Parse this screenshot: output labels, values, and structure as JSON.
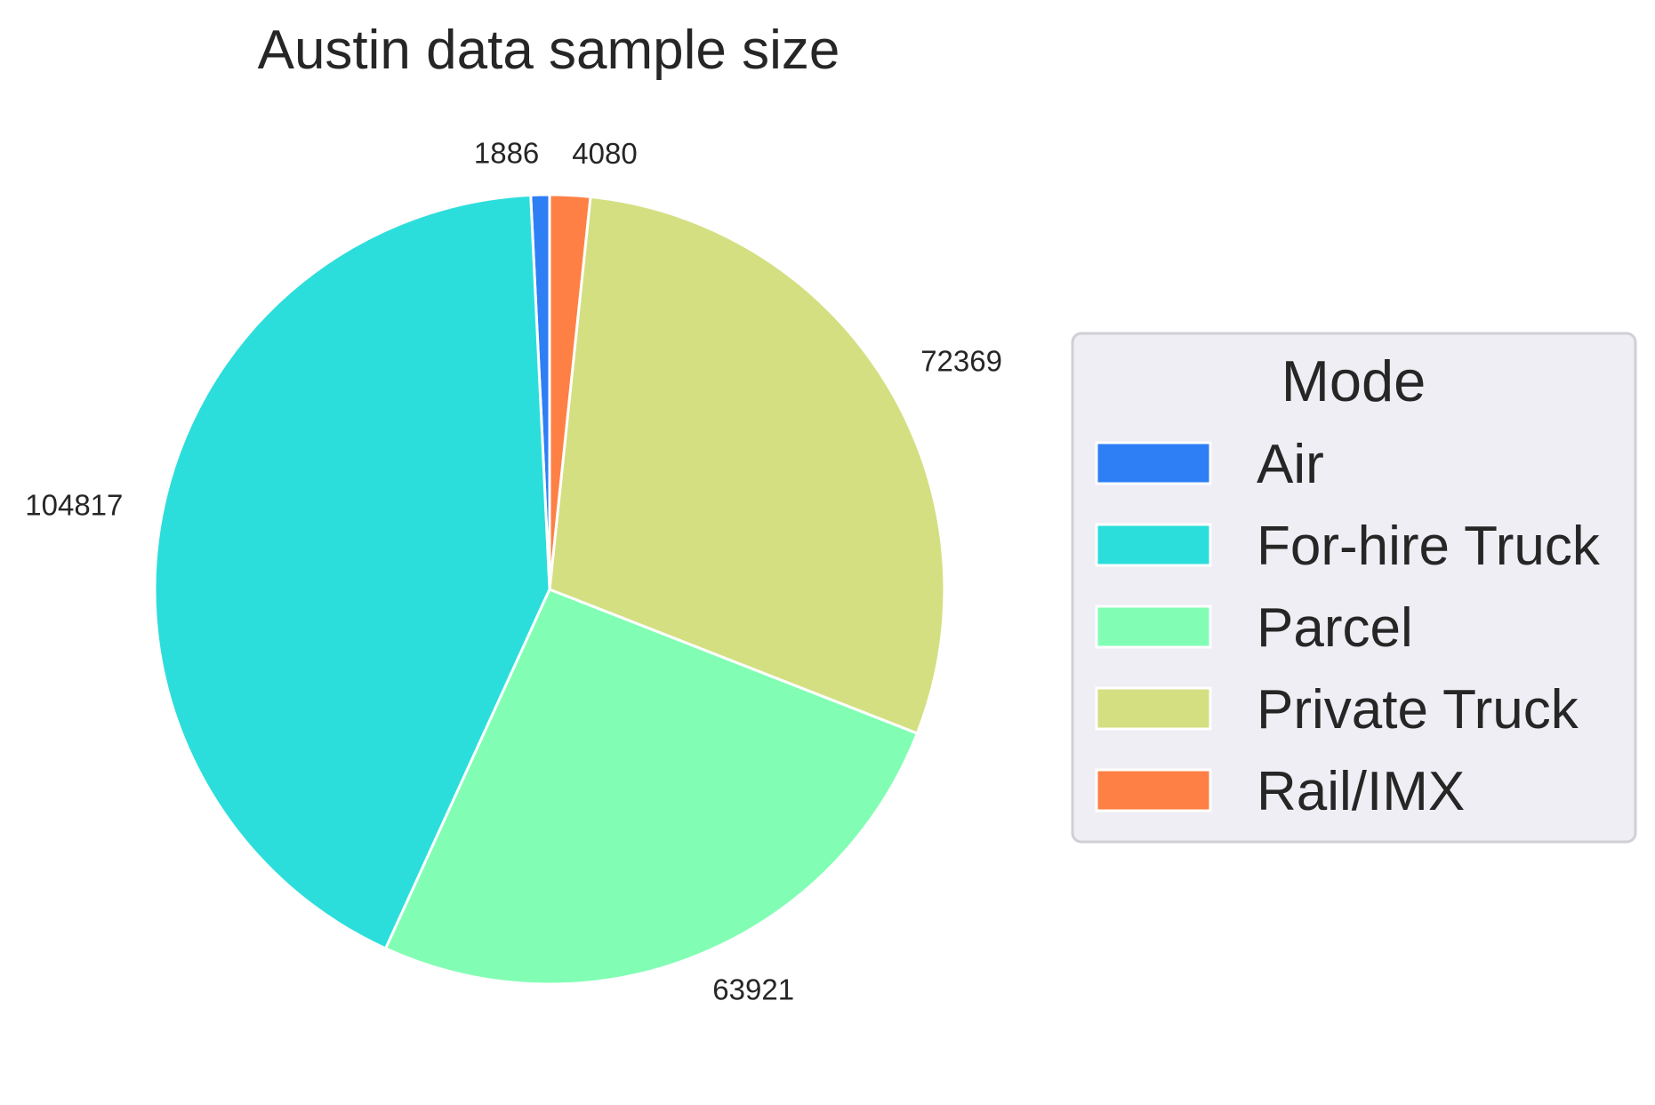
{
  "chart_data": {
    "type": "pie",
    "title": "Austin data sample size",
    "slices": [
      {
        "label": "Air",
        "value": 1886,
        "color": "#2e7ff6"
      },
      {
        "label": "For-hire Truck",
        "value": 104817,
        "color": "#2cdedb"
      },
      {
        "label": "Parcel",
        "value": 63921,
        "color": "#82feb4"
      },
      {
        "label": "Private Truck",
        "value": 72369,
        "color": "#d4df82"
      },
      {
        "label": "Rail/IMX",
        "value": 4080,
        "color": "#fe8045"
      }
    ],
    "legend": {
      "title": "Mode",
      "placement": "right",
      "background": "#eeeef4",
      "border_color": "#cfcfd6"
    },
    "wedge_edge_color": "#ffffff"
  }
}
